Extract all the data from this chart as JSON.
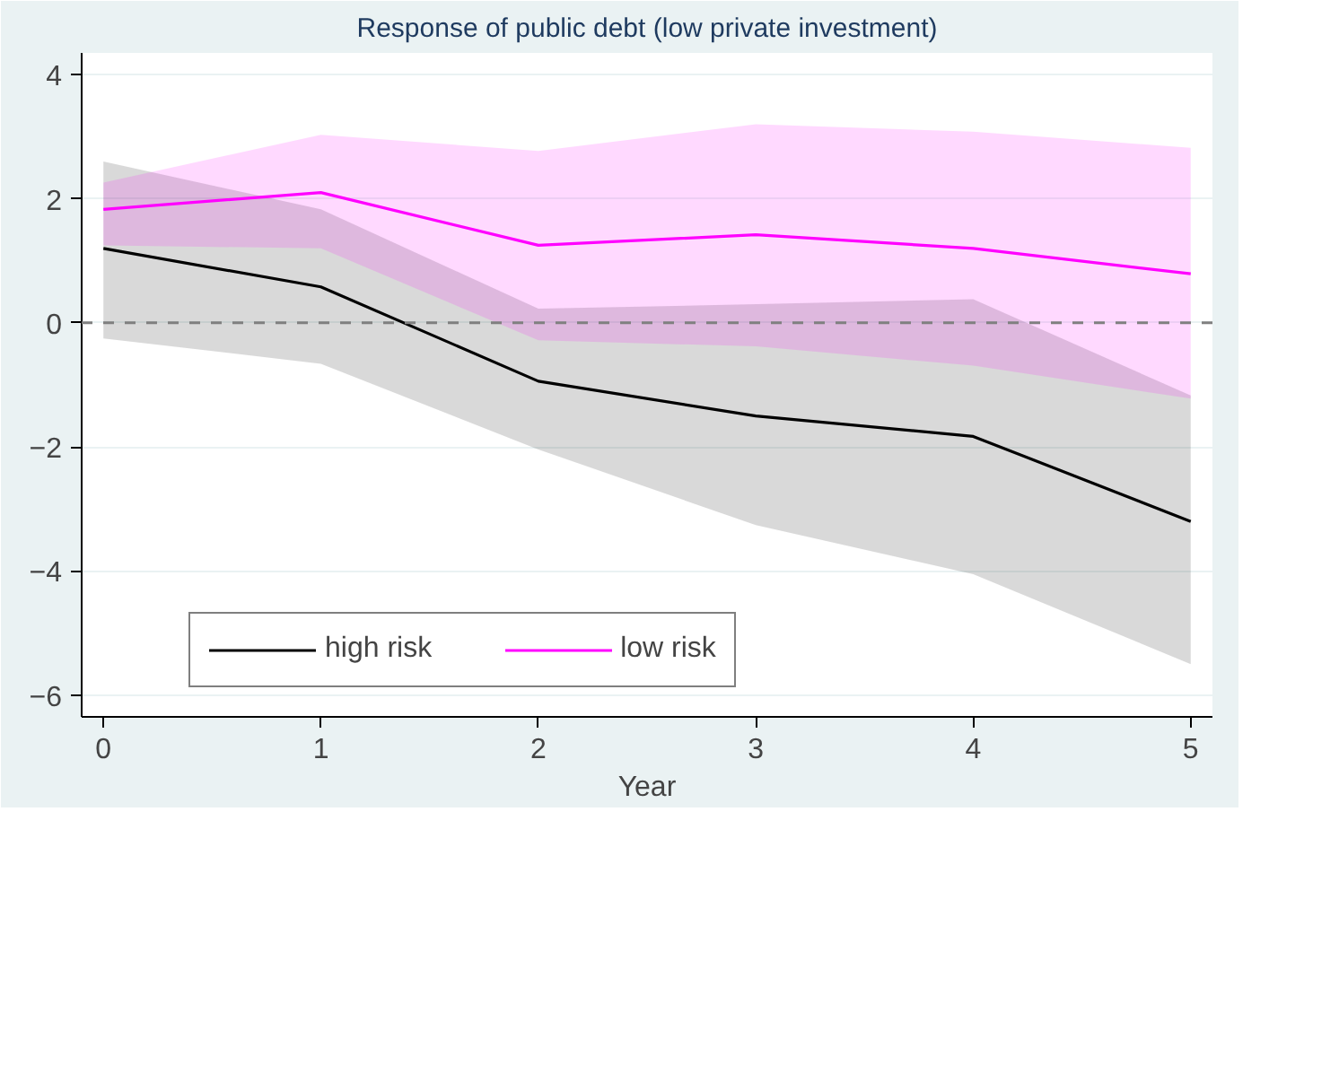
{
  "chart_data": {
    "type": "line",
    "title": "Response of public debt (low private investment)",
    "xlabel": "Year",
    "x": [
      0,
      1,
      2,
      3,
      4,
      5
    ],
    "series": [
      {
        "name": "high risk",
        "color": "#000000",
        "values": [
          1.2,
          0.58,
          -0.94,
          -1.5,
          -1.83,
          -3.2
        ],
        "lower": [
          -0.25,
          -0.66,
          -2.04,
          -3.26,
          -4.05,
          -5.5
        ],
        "upper": [
          2.6,
          1.83,
          0.23,
          0.3,
          0.38,
          -1.17
        ]
      },
      {
        "name": "low risk",
        "color": "#ff00ff",
        "values": [
          1.83,
          2.1,
          1.25,
          1.42,
          1.2,
          0.79
        ],
        "lower": [
          1.25,
          1.2,
          -0.28,
          -0.38,
          -0.69,
          -1.22
        ],
        "upper": [
          2.26,
          3.03,
          2.77,
          3.2,
          3.08,
          2.82
        ]
      }
    ],
    "xlim": [
      -0.1,
      5.1
    ],
    "ylim": [
      -6.35,
      4.35
    ],
    "xticks": [
      0,
      1,
      2,
      3,
      4,
      5
    ],
    "yticks": [
      -6,
      -4,
      -2,
      0,
      2,
      4
    ],
    "ref_lines": [
      {
        "axis": "y",
        "value": 0,
        "color": "#808080",
        "line_style": "dashed"
      }
    ],
    "grid": "y",
    "legend": "bottom",
    "line_style": "solid",
    "marker": "none"
  }
}
